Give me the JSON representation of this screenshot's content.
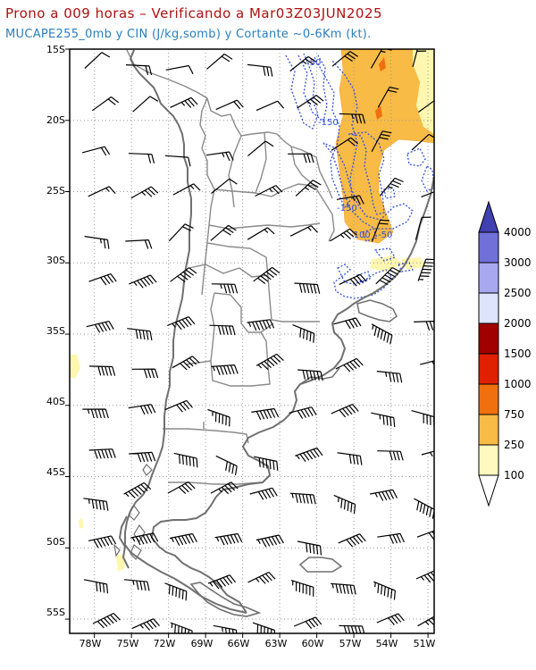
{
  "header": {
    "title": "Prono a 009 horas – Verificando a Mar03Z03JUN2025",
    "subtitle": "MUCAPE255_0mb y CIN (J/kg,somb) y Cortante ~0-6Km (kt)."
  },
  "map": {
    "lat_range": [
      -56,
      -15
    ],
    "lon_range": [
      -80,
      -50.5
    ],
    "lat_ticks": [
      "15S",
      "20S",
      "25S",
      "30S",
      "35S",
      "40S",
      "45S",
      "50S",
      "55S"
    ],
    "lat_tick_values": [
      -15,
      -20,
      -25,
      -30,
      -35,
      -40,
      -45,
      -50,
      -55
    ],
    "lon_ticks": [
      "78W",
      "75W",
      "72W",
      "69W",
      "66W",
      "63W",
      "60W",
      "57W",
      "54W",
      "51W"
    ],
    "lon_tick_values": [
      -78,
      -75,
      -72,
      -69,
      -66,
      -63,
      -60,
      -57,
      -54,
      -51
    ],
    "cin_labels": [
      "-50",
      "-150",
      "-150",
      "-100",
      "-50"
    ]
  },
  "colorbar": {
    "levels": [
      "100",
      "250",
      "750",
      "1000",
      "1500",
      "2000",
      "2500",
      "3000",
      "4000"
    ],
    "colors": [
      "#fff9c0",
      "#f8bb45",
      "#f07010",
      "#e02000",
      "#a00000",
      "#dde4fb",
      "#a8a8f0",
      "#7070d8",
      "#4040b0"
    ]
  },
  "colors": {
    "coast": "#707070",
    "border": "#8a8a8a",
    "cape_low": "#fff6b0",
    "cape_mid": "#f8bb45",
    "cape_high": "#f07010",
    "cin": "#3050e0",
    "grid": "#999999"
  }
}
